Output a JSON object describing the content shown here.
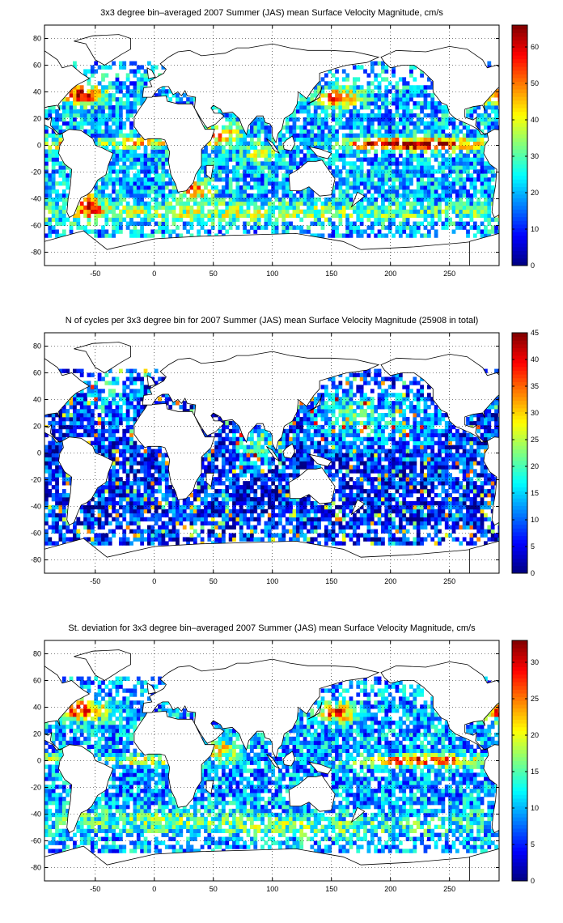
{
  "chart_data": [
    {
      "type": "heatmap",
      "title": "3x3 degree bin–averaged 2007 Summer (JAS) mean Surface Velocity Magnitude, cm/s",
      "xlabel": "",
      "ylabel": "",
      "xlim": [
        -93,
        292
      ],
      "ylim": [
        -90,
        90
      ],
      "xticks": [
        -50,
        0,
        50,
        100,
        150,
        200,
        250
      ],
      "yticks": [
        80,
        60,
        40,
        20,
        0,
        -20,
        -40,
        -60,
        -80
      ],
      "grid": "dotted",
      "colorbar": {
        "min": 0,
        "max": 66,
        "ticks": [
          0,
          10,
          20,
          30,
          40,
          50,
          60
        ]
      },
      "bin_deg": 3,
      "base_level": 0.3,
      "hotspots": [
        {
          "lon": 230,
          "lat": 1,
          "sx": 40,
          "sy": 3,
          "amp": 0.65
        },
        {
          "lon": 190,
          "lat": 1,
          "sx": 20,
          "sy": 3,
          "amp": 0.3
        },
        {
          "lon": 155,
          "lat": 36,
          "sx": 12,
          "sy": 5,
          "amp": 0.55
        },
        {
          "lon": -62,
          "lat": 38,
          "sx": 14,
          "sy": 5,
          "amp": 0.6
        },
        {
          "lon": -10,
          "lat": 2,
          "sx": 25,
          "sy": 3,
          "amp": 0.35
        },
        {
          "lon": 55,
          "lat": 8,
          "sx": 12,
          "sy": 6,
          "amp": 0.45
        },
        {
          "lon": 35,
          "lat": -33,
          "sx": 10,
          "sy": 5,
          "amp": 0.5
        },
        {
          "lon": 0,
          "lat": -50,
          "sx": 80,
          "sy": 5,
          "amp": 0.22
        },
        {
          "lon": 150,
          "lat": -50,
          "sx": 60,
          "sy": 5,
          "amp": 0.18
        },
        {
          "lon": -55,
          "lat": -45,
          "sx": 8,
          "sy": 6,
          "amp": 0.5
        },
        {
          "lon": 90,
          "lat": -5,
          "sx": 10,
          "sy": 5,
          "amp": 0.25
        }
      ]
    },
    {
      "type": "heatmap",
      "title": "N of cycles per 3x3 degree bin for 2007 Summer (JAS) mean Surface Velocity Magnitude (25908 in total)",
      "xlabel": "",
      "ylabel": "",
      "xlim": [
        -93,
        292
      ],
      "ylim": [
        -90,
        90
      ],
      "xticks": [
        -50,
        0,
        50,
        100,
        150,
        200,
        250
      ],
      "yticks": [
        80,
        60,
        40,
        20,
        0,
        -20,
        -40,
        -60,
        -80
      ],
      "grid": "dotted",
      "colorbar": {
        "min": 0,
        "max": 45,
        "ticks": [
          0,
          5,
          10,
          15,
          20,
          25,
          30,
          35,
          40,
          45
        ]
      },
      "bin_deg": 3,
      "base_level": 0.15,
      "hotspots": [
        {
          "lon": 160,
          "lat": 30,
          "sx": 20,
          "sy": 12,
          "amp": 0.25
        },
        {
          "lon": -40,
          "lat": 45,
          "sx": 15,
          "sy": 15,
          "amp": 0.2
        },
        {
          "lon": 85,
          "lat": 5,
          "sx": 12,
          "sy": 10,
          "amp": 0.25
        },
        {
          "lon": 210,
          "lat": 25,
          "sx": 30,
          "sy": 15,
          "amp": 0.15
        }
      ]
    },
    {
      "type": "heatmap",
      "title": "St. deviation for 3x3 degree bin–averaged 2007 Summer (JAS) mean Surface Velocity Magnitude, cm/s",
      "xlabel": "",
      "ylabel": "",
      "xlim": [
        -93,
        292
      ],
      "ylim": [
        -90,
        90
      ],
      "xticks": [
        -50,
        0,
        50,
        100,
        150,
        200,
        250
      ],
      "yticks": [
        80,
        60,
        40,
        20,
        0,
        -20,
        -40,
        -60,
        -80
      ],
      "grid": "dotted",
      "colorbar": {
        "min": 0,
        "max": 33,
        "ticks": [
          0,
          5,
          10,
          15,
          20,
          25,
          30
        ]
      },
      "bin_deg": 3,
      "base_level": 0.28,
      "hotspots": [
        {
          "lon": 230,
          "lat": 0,
          "sx": 35,
          "sy": 3,
          "amp": 0.6
        },
        {
          "lon": 155,
          "lat": 36,
          "sx": 12,
          "sy": 5,
          "amp": 0.55
        },
        {
          "lon": -62,
          "lat": 38,
          "sx": 14,
          "sy": 5,
          "amp": 0.65
        },
        {
          "lon": -10,
          "lat": 0,
          "sx": 20,
          "sy": 3,
          "amp": 0.3
        },
        {
          "lon": 55,
          "lat": 8,
          "sx": 12,
          "sy": 6,
          "amp": 0.35
        },
        {
          "lon": 0,
          "lat": -45,
          "sx": 80,
          "sy": 6,
          "amp": 0.2
        },
        {
          "lon": 150,
          "lat": -50,
          "sx": 60,
          "sy": 5,
          "amp": 0.18
        }
      ]
    }
  ]
}
